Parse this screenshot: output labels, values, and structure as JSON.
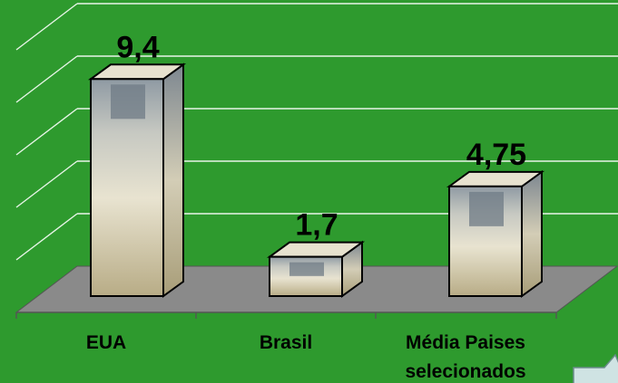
{
  "chart_data": {
    "type": "bar",
    "style": "3d-picture-fill",
    "categories": [
      "EUA",
      "Brasil",
      "Média Paises selecionados"
    ],
    "category_lines": [
      [
        "EUA"
      ],
      [
        "Brasil"
      ],
      [
        "Média Paises",
        "selecionados"
      ]
    ],
    "values": [
      9.4,
      1.7,
      4.75
    ],
    "value_labels": [
      "9,4",
      "1,7",
      "4,75"
    ],
    "title": "",
    "xlabel": "",
    "ylabel": "",
    "ylim": [
      0,
      10
    ],
    "grid": true,
    "legend": "none"
  },
  "colors": {
    "background": "#2e9a2e",
    "gridline": "#e8f5e8",
    "floor": "#8a8a8a",
    "bar_fill": "#d8d2bd"
  }
}
